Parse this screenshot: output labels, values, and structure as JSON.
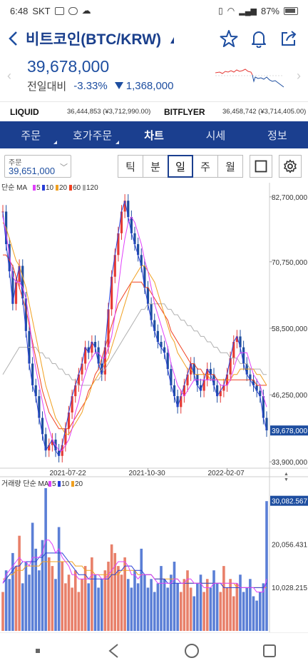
{
  "status_bar": {
    "time": "6:48",
    "carrier": "SKT",
    "battery": "87%"
  },
  "header": {
    "title": "비트코인(BTC/KRW)"
  },
  "price": {
    "current": "39,678,000",
    "change_label": "전일대비",
    "change_pct": "-3.33%",
    "change_abs": "1,368,000"
  },
  "exchanges": [
    {
      "name": "LIQUID",
      "value": "36,444,853 (¥3,712,990.00)"
    },
    {
      "name": "BITFLYER",
      "value": "36,458,742 (¥3,714,405.00)"
    }
  ],
  "tabs": [
    {
      "label": "주문",
      "corner": true
    },
    {
      "label": "호가주문",
      "corner": true
    },
    {
      "label": "차트",
      "active": true
    },
    {
      "label": "시세"
    },
    {
      "label": "정보"
    }
  ],
  "order_box": {
    "label": "주문",
    "value": "39,651,000"
  },
  "periods": [
    "틱",
    "분",
    "일",
    "주",
    "월"
  ],
  "active_period": "일",
  "chart_data": {
    "type": "line",
    "price_panel": {
      "legend_prefix": "단순 MA",
      "ma_items": [
        {
          "label": "5",
          "color": "#e040fb"
        },
        {
          "label": "10",
          "color": "#2a3fd8"
        },
        {
          "label": "20",
          "color": "#f0a020"
        },
        {
          "label": "60",
          "color": "#f04020"
        },
        {
          "label": "120",
          "color": "#b0b0b0"
        }
      ],
      "y_ticks": [
        {
          "label": "82,700,000",
          "value": 82700000
        },
        {
          "label": "70,750,000",
          "value": 70750000
        },
        {
          "label": "58,500,000",
          "value": 58500000
        },
        {
          "label": "46,250,000",
          "value": 46250000
        },
        {
          "label": "33,900,000",
          "value": 33900000
        }
      ],
      "ylim": [
        33000000,
        84000000
      ],
      "current_label": "39,678,000",
      "x_ticks": [
        {
          "label": "2021-07-22",
          "index": 20
        },
        {
          "label": "2021-10-30",
          "index": 44
        },
        {
          "label": "2022-02-07",
          "index": 68
        }
      ],
      "close": [
        80,
        74,
        69,
        63,
        67,
        70,
        64,
        58,
        52,
        48,
        46,
        42,
        39,
        36,
        37,
        38,
        36,
        35,
        37,
        40,
        43,
        46,
        48,
        50,
        52,
        55,
        54,
        56,
        55,
        52,
        50,
        55,
        62,
        68,
        72,
        76,
        80,
        82,
        79,
        76,
        74,
        72,
        70,
        66,
        63,
        60,
        58,
        56,
        55,
        54,
        51,
        48,
        46,
        44,
        46,
        48,
        50,
        52,
        50,
        48,
        47,
        49,
        51,
        50,
        48,
        46,
        47,
        48,
        50,
        53,
        56,
        57,
        55,
        52,
        50,
        49,
        48,
        47,
        46,
        42,
        39.7
      ],
      "ma5": [
        79,
        76,
        72,
        68,
        67,
        67,
        66,
        64,
        60,
        55,
        51,
        48,
        45,
        42,
        40,
        38,
        37,
        36,
        36,
        37,
        38,
        40,
        43,
        45,
        48,
        50,
        52,
        53,
        54,
        54,
        53,
        53,
        55,
        57,
        61,
        66,
        71,
        75,
        78,
        79,
        78,
        76,
        74,
        71,
        69,
        66,
        63,
        61,
        59,
        57,
        55,
        52,
        50,
        48,
        47,
        46,
        47,
        48,
        49,
        49,
        49,
        49,
        49,
        49,
        49,
        49,
        48,
        48,
        48,
        49,
        51,
        53,
        54,
        54,
        54,
        52,
        50,
        49,
        48,
        46,
        44
      ],
      "ma20": [
        78,
        77,
        75,
        73,
        71,
        70,
        68,
        66,
        63,
        60,
        57,
        54,
        51,
        48,
        46,
        44,
        42,
        41,
        40,
        39,
        39,
        40,
        41,
        42,
        43,
        45,
        46,
        48,
        49,
        50,
        51,
        52,
        53,
        55,
        57,
        59,
        61,
        63,
        65,
        67,
        68,
        69,
        70,
        70,
        69,
        68,
        67,
        65,
        63,
        61,
        59,
        57,
        56,
        54,
        53,
        52,
        51,
        51,
        50,
        50,
        50,
        50,
        50,
        49,
        49,
        49,
        49,
        49,
        49,
        49,
        50,
        50,
        51,
        51,
        51,
        51,
        51,
        50,
        50,
        49,
        48
      ],
      "ma60": [
        72,
        72,
        71,
        70,
        68,
        66,
        64,
        62,
        59,
        56,
        53,
        50,
        47,
        45,
        43,
        42,
        41,
        40,
        40,
        40,
        40,
        41,
        42,
        43,
        44,
        45,
        47,
        48,
        50,
        51,
        53,
        55,
        57,
        59,
        61,
        63,
        64,
        65,
        66,
        67,
        67,
        67,
        67,
        66,
        66,
        65,
        64,
        63,
        62,
        61,
        60,
        58,
        57,
        56,
        55,
        54,
        53,
        52,
        52,
        51,
        51,
        50,
        50,
        50,
        50,
        49,
        49,
        49,
        49,
        49,
        49,
        49,
        49,
        49,
        49,
        49,
        49,
        48,
        48,
        48,
        48
      ],
      "ma120": [
        50,
        51,
        52,
        53,
        54,
        55,
        55,
        55,
        55,
        55,
        55,
        54,
        54,
        53,
        53,
        52,
        52,
        51,
        51,
        50,
        50,
        49,
        49,
        48,
        48,
        48,
        48,
        48,
        49,
        49,
        50,
        51,
        52,
        53,
        54,
        55,
        56,
        57,
        58,
        59,
        60,
        61,
        62,
        62,
        63,
        63,
        63,
        63,
        63,
        63,
        62,
        62,
        61,
        61,
        60,
        60,
        59,
        59,
        58,
        58,
        57,
        57,
        56,
        56,
        55,
        55,
        54,
        54,
        54,
        53,
        53,
        53,
        52,
        52,
        52,
        51,
        51,
        51,
        51,
        50,
        50
      ]
    },
    "volume_panel": {
      "legend_prefix": "거래량 단순 MA",
      "ma_items": [
        {
          "label": "5",
          "color": "#e040fb"
        },
        {
          "label": "10",
          "color": "#2a3fd8"
        },
        {
          "label": "20",
          "color": "#f0a020"
        }
      ],
      "y_ticks": [
        {
          "label": "30,082.567",
          "value": 30082.567
        },
        {
          "label": "20,056.431",
          "value": 20056.431
        },
        {
          "label": "10,028.215",
          "value": 10028.215
        }
      ],
      "ylim": [
        0,
        33000
      ],
      "values": [
        9,
        14,
        12,
        18,
        15,
        22,
        11,
        16,
        13,
        25,
        19,
        14,
        21,
        33,
        17,
        15,
        12,
        24,
        16,
        11,
        13,
        10,
        14,
        9,
        12,
        15,
        11,
        17,
        13,
        10,
        12,
        14,
        16,
        20,
        18,
        15,
        13,
        17,
        12,
        10,
        14,
        11,
        19,
        13,
        10,
        12,
        9,
        11,
        15,
        12,
        10,
        13,
        16,
        11,
        9,
        12,
        14,
        10,
        8,
        11,
        13,
        9,
        12,
        10,
        14,
        11,
        9,
        15,
        10,
        12,
        8,
        11,
        13,
        9,
        10,
        12,
        8,
        7,
        9,
        11,
        30
      ],
      "ma5": [
        11,
        13,
        14,
        15,
        16,
        17,
        16,
        16,
        15,
        17,
        17,
        17,
        18,
        21,
        21,
        20,
        18,
        19,
        17,
        16,
        15,
        13,
        13,
        12,
        12,
        12,
        12,
        13,
        13,
        13,
        12,
        12,
        13,
        14,
        15,
        16,
        16,
        16,
        15,
        13,
        13,
        12,
        13,
        13,
        13,
        13,
        12,
        11,
        11,
        11,
        11,
        11,
        12,
        12,
        11,
        11,
        12,
        12,
        11,
        11,
        11,
        10,
        10,
        10,
        11,
        11,
        11,
        11,
        11,
        11,
        11,
        11,
        10,
        10,
        10,
        10,
        10,
        9,
        9,
        9,
        12
      ],
      "ma10": [
        11,
        12,
        13,
        14,
        15,
        15,
        16,
        16,
        16,
        16,
        16,
        17,
        17,
        18,
        18,
        18,
        18,
        18,
        18,
        17,
        16,
        15,
        14,
        13,
        13,
        13,
        12,
        12,
        12,
        12,
        12,
        12,
        12,
        13,
        13,
        14,
        14,
        15,
        15,
        15,
        14,
        14,
        14,
        13,
        13,
        13,
        12,
        12,
        12,
        12,
        11,
        11,
        11,
        11,
        11,
        11,
        11,
        11,
        11,
        11,
        11,
        11,
        11,
        11,
        11,
        11,
        11,
        10,
        10,
        10,
        10,
        10,
        10,
        10,
        10,
        10,
        10,
        10,
        10,
        10,
        11
      ],
      "ma20": [
        12,
        12,
        13,
        13,
        14,
        14,
        14,
        15,
        15,
        15,
        15,
        15,
        16,
        16,
        16,
        16,
        16,
        16,
        16,
        16,
        16,
        16,
        15,
        15,
        15,
        14,
        14,
        14,
        13,
        13,
        13,
        13,
        13,
        13,
        13,
        13,
        14,
        14,
        14,
        14,
        14,
        13,
        13,
        13,
        13,
        13,
        12,
        12,
        12,
        12,
        12,
        12,
        12,
        12,
        11,
        11,
        11,
        11,
        11,
        11,
        11,
        11,
        11,
        11,
        11,
        11,
        11,
        11,
        11,
        11,
        11,
        10,
        10,
        10,
        10,
        10,
        10,
        10,
        10,
        10,
        10
      ]
    }
  }
}
